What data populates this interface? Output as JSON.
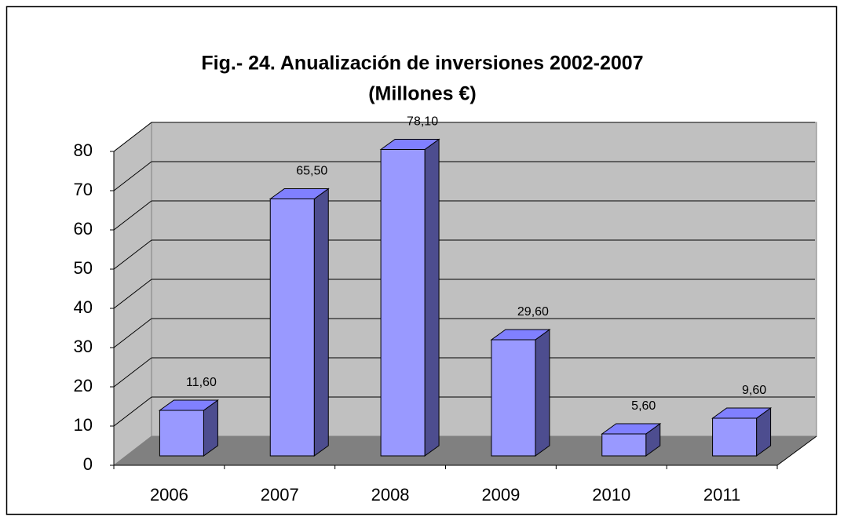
{
  "chart_data": {
    "type": "bar3d",
    "title": "Fig.- 24. Anualización de inversiones 2002-2007",
    "subtitle": "(Millones €)",
    "categories": [
      "2006",
      "2007",
      "2008",
      "2009",
      "2010",
      "2011"
    ],
    "values": [
      11.6,
      65.5,
      78.1,
      29.6,
      5.6,
      9.6
    ],
    "value_labels": [
      "11,60",
      "65,50",
      "78,10",
      "29,60",
      "5,60",
      "9,60"
    ],
    "color": "#9999ff",
    "ylim": [
      0,
      80
    ],
    "yticks": [
      0,
      10,
      20,
      30,
      40,
      50,
      60,
      70,
      80
    ],
    "grid": true
  }
}
